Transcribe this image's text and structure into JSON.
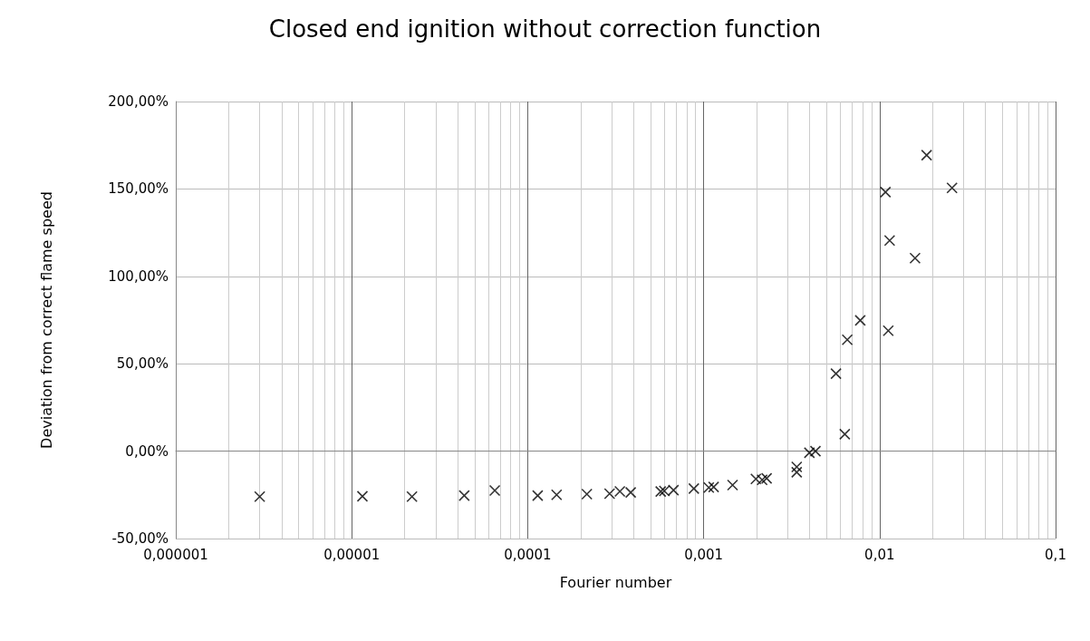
{
  "chart_data": {
    "type": "scatter",
    "title": "Closed end ignition without correction function",
    "xlabel": "Fourier number",
    "ylabel": "Deviation from correct flame speed",
    "x": [
      3e-06,
      1.15e-05,
      2.2e-05,
      4.36e-05,
      6.5e-05,
      0.000114,
      0.000146,
      0.000217,
      0.000292,
      0.000334,
      0.000385,
      0.00057,
      0.000598,
      0.000674,
      0.00088,
      0.00107,
      0.00114,
      0.00146,
      0.00198,
      0.00215,
      0.00228,
      0.00338,
      0.00338,
      0.00399,
      0.00432,
      0.00565,
      0.00655,
      0.00776,
      0.00634,
      0.0108,
      0.0114,
      0.0112,
      0.0159,
      0.0185,
      0.0258
    ],
    "values": [
      -26,
      -25.8,
      -26,
      -25.4,
      -22.5,
      -25.4,
      -25,
      -24.6,
      -24.3,
      -23,
      -23.6,
      -23.1,
      -22.8,
      -22.3,
      -21.4,
      -20.8,
      -20.5,
      -19.4,
      -15.9,
      -16.4,
      -15.6,
      -9,
      -12.1,
      -0.9,
      0,
      44.3,
      63.7,
      74.8,
      9.7,
      148.2,
      120.5,
      68.9,
      110.4,
      169.3,
      150.6
    ],
    "color": "#000000",
    "marker": "cross",
    "log": "x",
    "grid": true,
    "xlim": [
      1e-06,
      0.1
    ],
    "xticks": [
      {
        "value": 1e-06,
        "label": "0,000001"
      },
      {
        "value": 1e-05,
        "label": "0,00001"
      },
      {
        "value": 0.0001,
        "label": "0,0001"
      },
      {
        "value": 0.001,
        "label": "0,001"
      },
      {
        "value": 0.01,
        "label": "0,01"
      },
      {
        "value": 0.1,
        "label": "0,1"
      }
    ],
    "ylim": [
      -50,
      200
    ],
    "yticks": [
      {
        "value": -50,
        "label": "-50,00%"
      },
      {
        "value": 0,
        "label": "0,00%"
      },
      {
        "value": 50,
        "label": "50,00%"
      },
      {
        "value": 100,
        "label": "100,00%"
      },
      {
        "value": 150,
        "label": "150,00%"
      },
      {
        "value": 200,
        "label": "200,00%"
      }
    ]
  }
}
